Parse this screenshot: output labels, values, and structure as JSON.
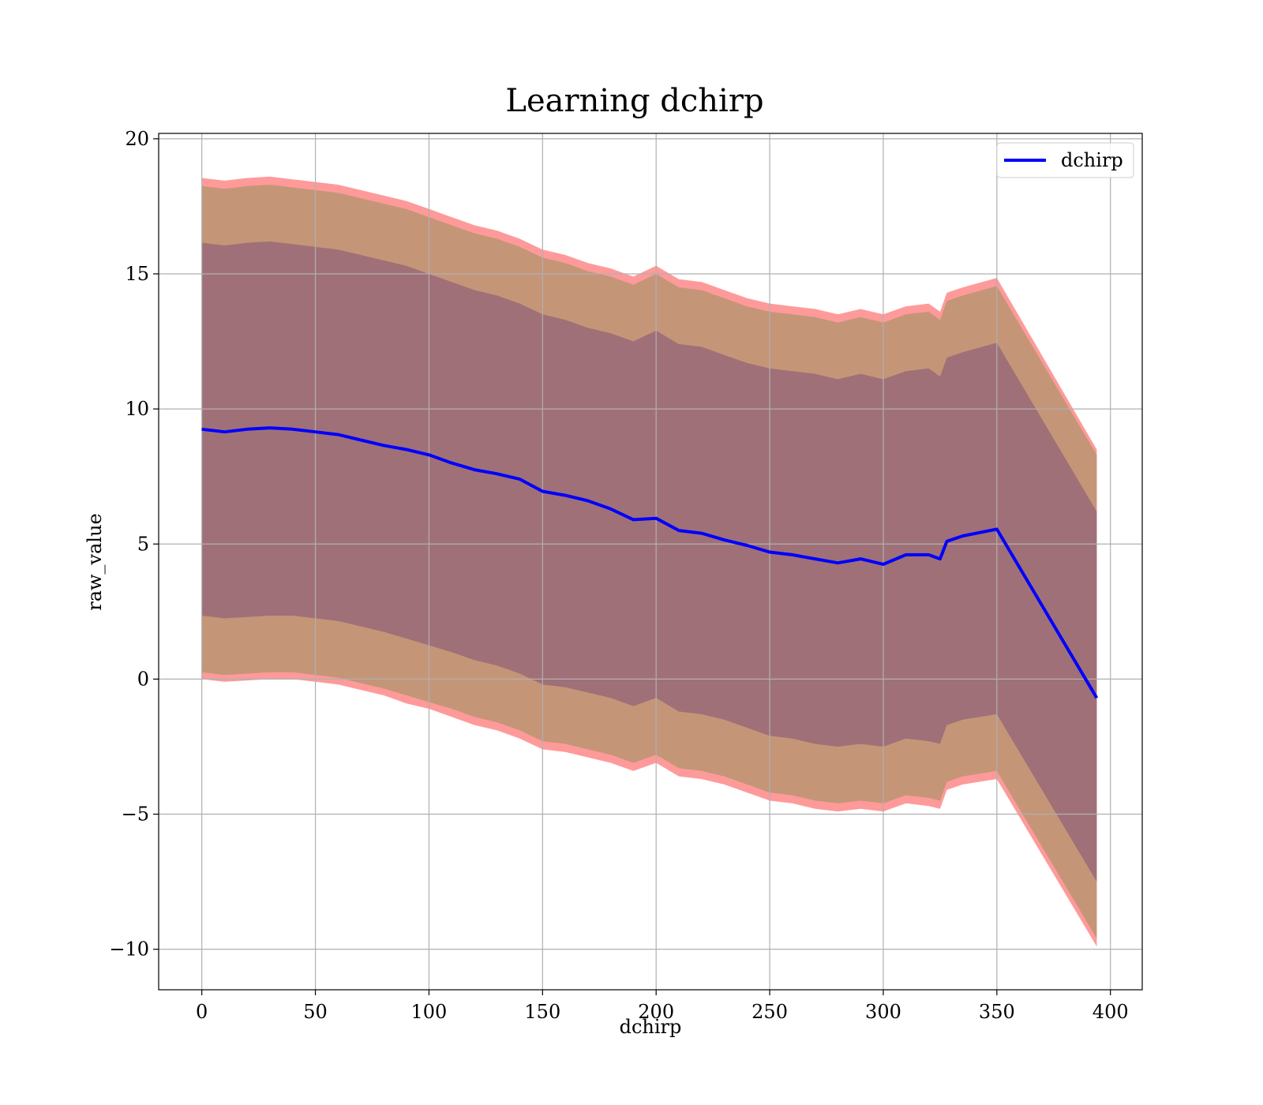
{
  "chart_data": {
    "type": "line",
    "title": "Learning dchirp",
    "xlabel": "dchirp",
    "ylabel": "raw_value",
    "xlim": [
      -19,
      414
    ],
    "ylim": [
      -11.5,
      20.2
    ],
    "xticks": [
      0,
      50,
      100,
      150,
      200,
      250,
      300,
      350,
      400
    ],
    "yticks": [
      -10,
      -5,
      0,
      5,
      10,
      15,
      20
    ],
    "ytick_labels": [
      "−10",
      "−5",
      "0",
      "5",
      "10",
      "15",
      "20"
    ],
    "grid": true,
    "legend_position": "top-right",
    "colors": {
      "line": "#0000ff",
      "band_outer": "#ff9a9a",
      "band_middle": "#c59578",
      "band_inner": "#a07078",
      "grid": "#b0b0b0"
    },
    "series": [
      {
        "name": "dchirp",
        "x": [
          0,
          10,
          20,
          30,
          40,
          50,
          60,
          70,
          80,
          90,
          100,
          110,
          120,
          130,
          140,
          150,
          160,
          170,
          180,
          190,
          200,
          210,
          220,
          230,
          240,
          250,
          260,
          270,
          280,
          290,
          300,
          310,
          320,
          325,
          328,
          335,
          350,
          394
        ],
        "values": [
          9.25,
          9.15,
          9.25,
          9.3,
          9.25,
          9.15,
          9.05,
          8.85,
          8.65,
          8.5,
          8.3,
          8.0,
          7.75,
          7.6,
          7.4,
          6.95,
          6.8,
          6.6,
          6.3,
          5.9,
          5.95,
          5.5,
          5.4,
          5.15,
          4.95,
          4.7,
          4.6,
          4.45,
          4.3,
          4.45,
          4.25,
          4.6,
          4.6,
          4.45,
          5.1,
          5.3,
          5.55,
          -0.7
        ]
      }
    ],
    "bands": {
      "x": [
        0,
        10,
        20,
        30,
        40,
        50,
        60,
        70,
        80,
        90,
        100,
        110,
        120,
        130,
        140,
        150,
        160,
        170,
        180,
        190,
        200,
        210,
        220,
        230,
        240,
        250,
        260,
        270,
        280,
        290,
        300,
        310,
        320,
        325,
        328,
        335,
        350,
        394
      ],
      "outer_upper": [
        18.55,
        18.45,
        18.55,
        18.6,
        18.5,
        18.4,
        18.3,
        18.1,
        17.9,
        17.7,
        17.4,
        17.1,
        16.8,
        16.6,
        16.3,
        15.9,
        15.7,
        15.4,
        15.2,
        14.9,
        15.3,
        14.8,
        14.7,
        14.4,
        14.1,
        13.9,
        13.8,
        13.7,
        13.5,
        13.7,
        13.5,
        13.8,
        13.9,
        13.6,
        14.3,
        14.5,
        14.85,
        8.5
      ],
      "outer_lower": [
        0.0,
        -0.1,
        -0.05,
        0.0,
        0.0,
        -0.1,
        -0.2,
        -0.4,
        -0.6,
        -0.9,
        -1.1,
        -1.4,
        -1.7,
        -1.9,
        -2.2,
        -2.6,
        -2.7,
        -2.9,
        -3.1,
        -3.4,
        -3.1,
        -3.6,
        -3.7,
        -3.9,
        -4.2,
        -4.5,
        -4.6,
        -4.8,
        -4.9,
        -4.8,
        -4.9,
        -4.6,
        -4.7,
        -4.8,
        -4.1,
        -3.9,
        -3.7,
        -9.9
      ],
      "middle_upper": [
        18.25,
        18.15,
        18.25,
        18.3,
        18.2,
        18.1,
        18.0,
        17.8,
        17.6,
        17.4,
        17.1,
        16.8,
        16.5,
        16.3,
        16.0,
        15.6,
        15.4,
        15.1,
        14.9,
        14.6,
        15.0,
        14.5,
        14.4,
        14.1,
        13.8,
        13.6,
        13.5,
        13.4,
        13.2,
        13.4,
        13.2,
        13.5,
        13.6,
        13.3,
        14.0,
        14.2,
        14.55,
        8.3
      ],
      "middle_lower": [
        0.25,
        0.15,
        0.2,
        0.25,
        0.25,
        0.15,
        0.05,
        -0.15,
        -0.35,
        -0.6,
        -0.85,
        -1.1,
        -1.4,
        -1.6,
        -1.9,
        -2.3,
        -2.4,
        -2.6,
        -2.8,
        -3.1,
        -2.8,
        -3.3,
        -3.4,
        -3.6,
        -3.9,
        -4.2,
        -4.3,
        -4.5,
        -4.6,
        -4.5,
        -4.6,
        -4.3,
        -4.4,
        -4.5,
        -3.8,
        -3.6,
        -3.4,
        -9.6
      ],
      "inner_upper": [
        16.15,
        16.05,
        16.15,
        16.2,
        16.1,
        16.0,
        15.9,
        15.7,
        15.5,
        15.3,
        15.0,
        14.7,
        14.4,
        14.2,
        13.9,
        13.5,
        13.3,
        13.0,
        12.8,
        12.5,
        12.9,
        12.4,
        12.3,
        12.0,
        11.7,
        11.5,
        11.4,
        11.3,
        11.1,
        11.3,
        11.1,
        11.4,
        11.5,
        11.2,
        11.9,
        12.1,
        12.45,
        6.2
      ],
      "inner_lower": [
        2.35,
        2.25,
        2.3,
        2.35,
        2.35,
        2.25,
        2.15,
        1.95,
        1.75,
        1.5,
        1.25,
        1.0,
        0.7,
        0.5,
        0.2,
        -0.2,
        -0.3,
        -0.5,
        -0.7,
        -1.0,
        -0.7,
        -1.2,
        -1.3,
        -1.5,
        -1.8,
        -2.1,
        -2.2,
        -2.4,
        -2.5,
        -2.4,
        -2.5,
        -2.2,
        -2.3,
        -2.4,
        -1.7,
        -1.5,
        -1.3,
        -7.5
      ]
    }
  }
}
